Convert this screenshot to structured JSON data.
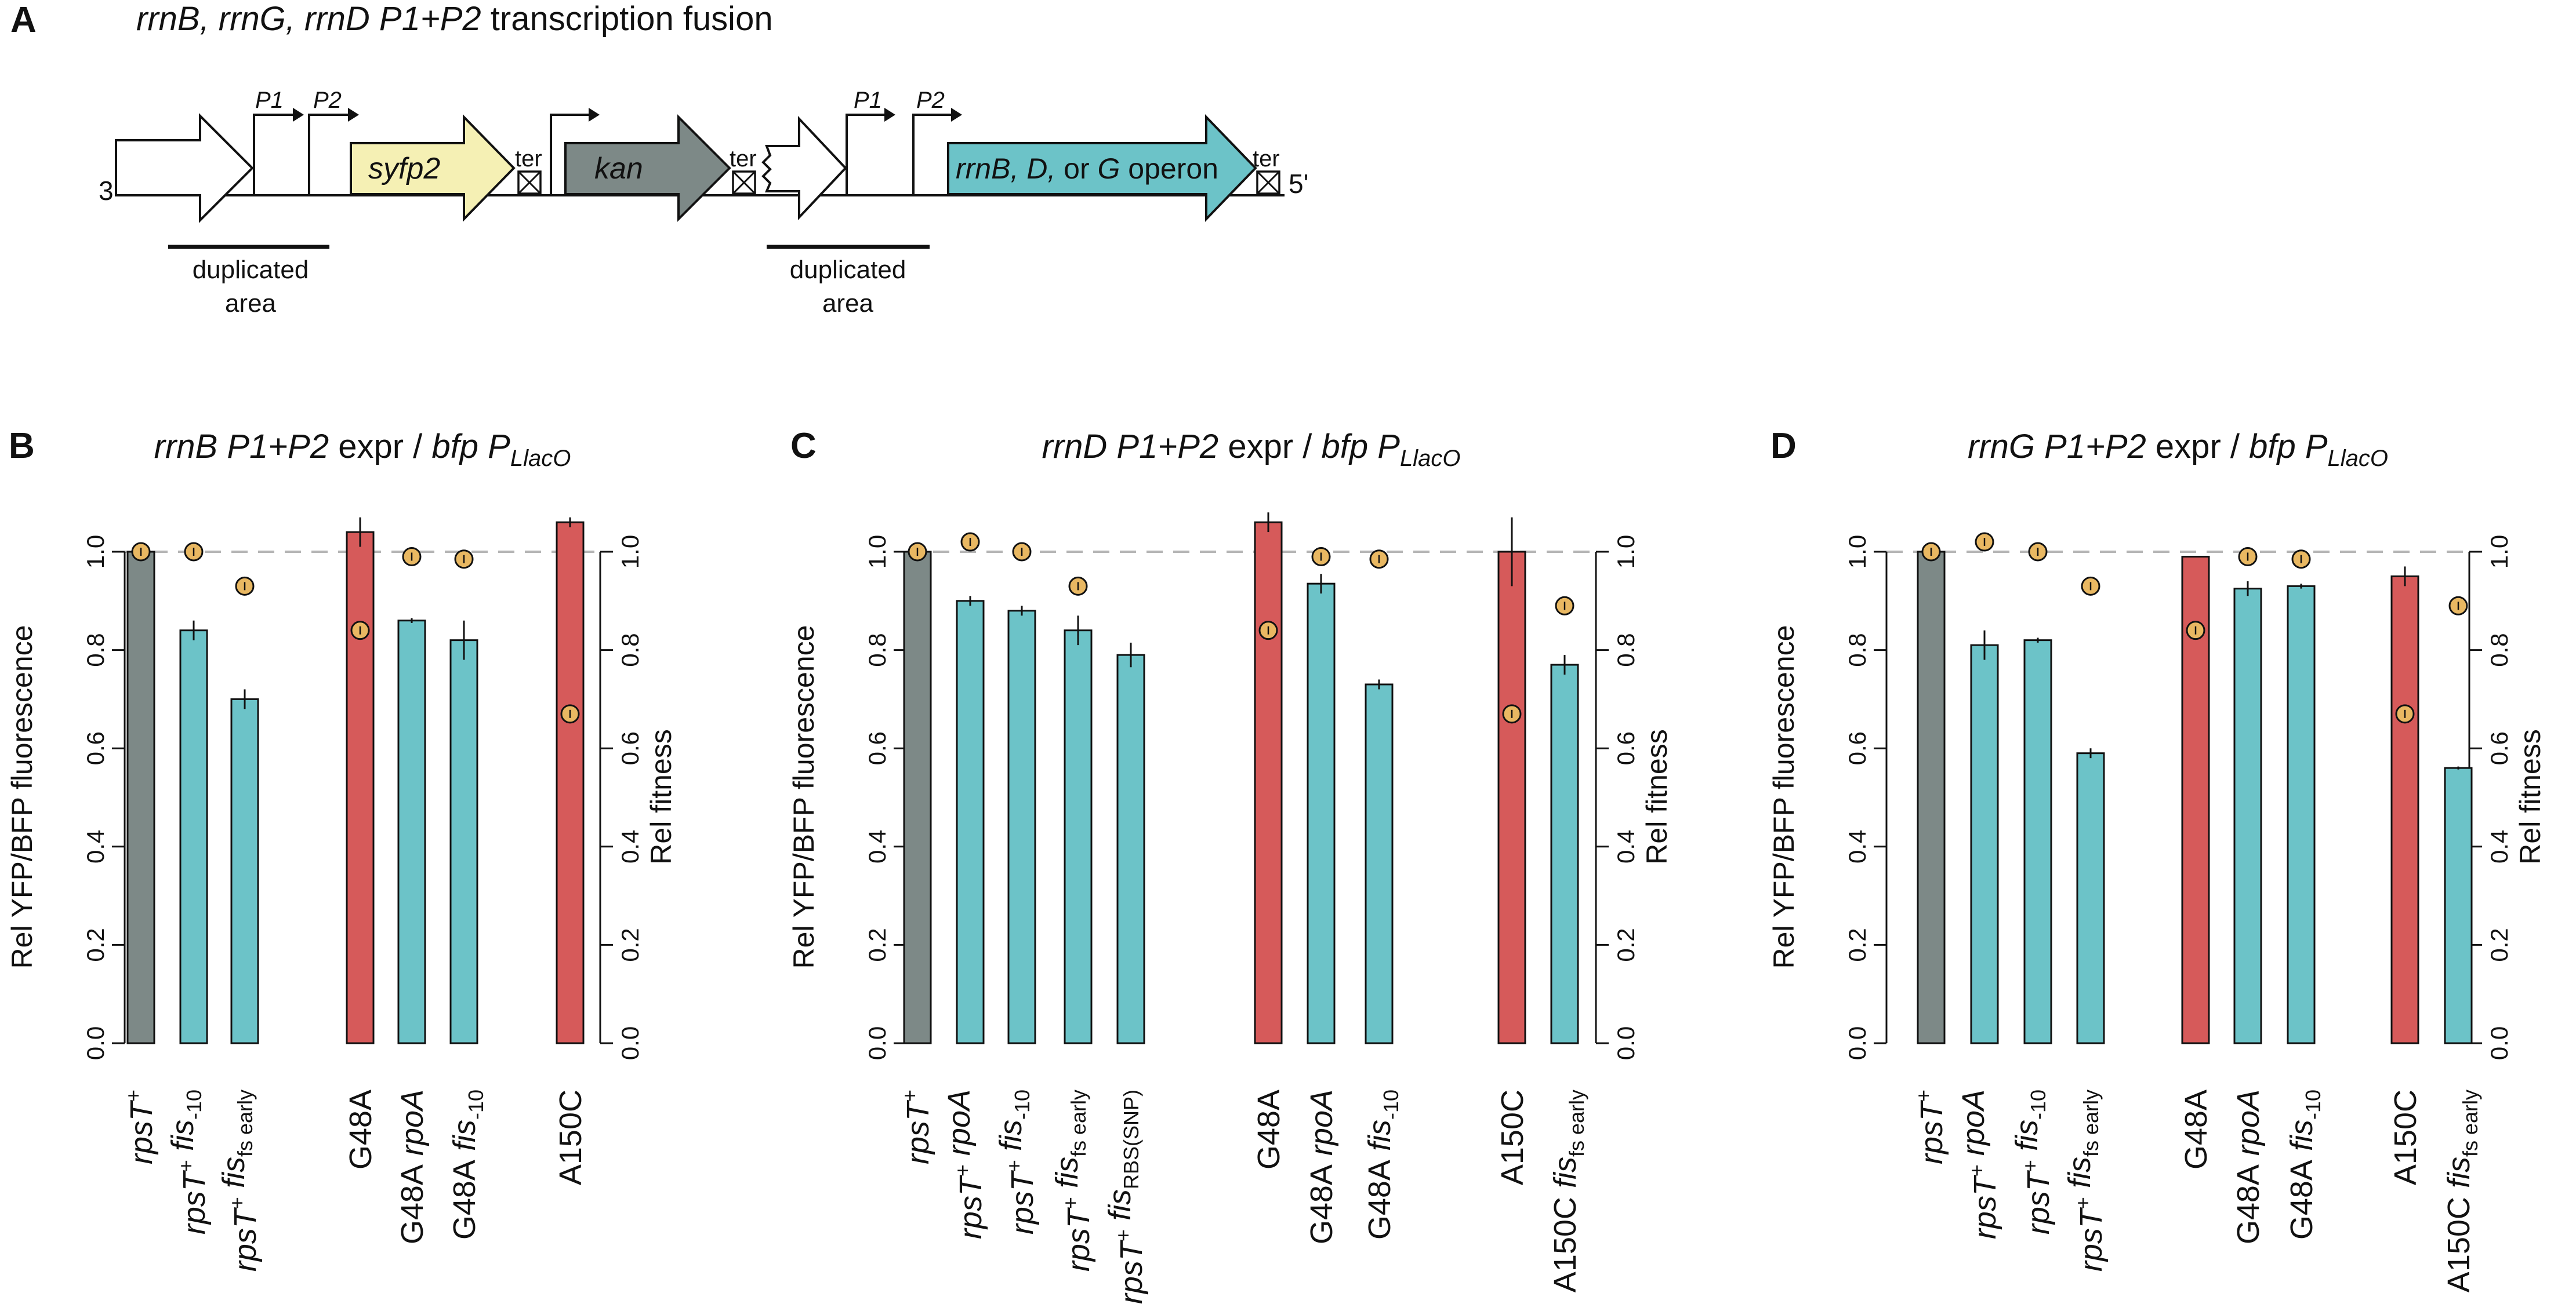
{
  "schematic": {
    "panel_label": "A",
    "title_italic": "rrnB, rrnG, rrnD  P1+P2",
    "title_rest": " transcription fusion",
    "end_left": "3'",
    "end_right": "5'",
    "p1": "P1",
    "p2": "P2",
    "syfp2": "syfp2",
    "kan": "kan",
    "ter": "ter",
    "operon_italic": "rrnB, D,",
    "operon_or": " or ",
    "operon_g": "G",
    "operon_word": " operon",
    "dup_line1": "duplicated",
    "dup_line2": "area",
    "colors": {
      "syfp2": "#f5f0b4",
      "kan": "#7d8987",
      "operon": "#6cc3c8"
    }
  },
  "chart_data": [
    {
      "type": "bar",
      "panel": "B",
      "title": {
        "gene": "rrnB P1+P2",
        "expr": " expr / ",
        "bfp": "bfp P",
        "sub": "LlacO"
      },
      "ylabel": "Rel YFP/BFP fluorescence",
      "ylabel_right": "Rel fitness",
      "ylim": [
        0,
        1.0
      ],
      "yticks": [
        "0.0",
        "0.2",
        "0.4",
        "0.6",
        "0.8",
        "1.0"
      ],
      "reference_line": 1.0,
      "categories": [
        "rpsT+",
        "rpsT+ fis-10",
        "rpsT+ fisfs early",
        "G48A",
        "G48A rpoA",
        "G48A fis-10",
        "A150C"
      ],
      "fluorescence": [
        1.0,
        0.84,
        0.7,
        1.04,
        0.86,
        0.82,
        1.06
      ],
      "errors": [
        0.0,
        0.02,
        0.02,
        0.03,
        0.005,
        0.04,
        0.01
      ],
      "fitness": [
        1.0,
        1.0,
        0.93,
        0.84,
        0.99,
        0.985,
        0.67
      ],
      "bar_colors": [
        "#7d8987",
        "#6cc3c8",
        "#6cc3c8",
        "#d65a5a",
        "#6cc3c8",
        "#6cc3c8",
        "#d65a5a"
      ],
      "labels": [
        [
          {
            "t": "rpsT",
            "i": true,
            "sup": "+"
          }
        ],
        [
          {
            "t": "rpsT",
            "i": true,
            "sup": "+"
          },
          {
            "t": "fis",
            "i": true,
            "sub": "-10"
          }
        ],
        [
          {
            "t": "rpsT",
            "i": true,
            "sup": "+"
          },
          {
            "t": "fis",
            "i": true,
            "sub": "fs early"
          }
        ],
        [
          {
            "t": "G48A"
          }
        ],
        [
          {
            "t": "G48A"
          },
          {
            "t": "rpoA",
            "i": true
          }
        ],
        [
          {
            "t": "G48A"
          },
          {
            "t": "fis",
            "i": true,
            "sub": "-10"
          }
        ],
        [
          {
            "t": "A150C"
          }
        ]
      ]
    },
    {
      "type": "bar",
      "panel": "C",
      "title": {
        "gene": "rrnD P1+P2",
        "expr": " expr / ",
        "bfp": "bfp P",
        "sub": "LlacO"
      },
      "ylabel": "Rel YFP/BFP fluorescence",
      "ylabel_right": "Rel fitness",
      "ylim": [
        0,
        1.0
      ],
      "yticks": [
        "0.0",
        "0.2",
        "0.4",
        "0.6",
        "0.8",
        "1.0"
      ],
      "reference_line": 1.0,
      "categories": [
        "rpsT+",
        "rpsT+ rpoA",
        "rpsT+ fis-10",
        "rpsT+ fisfs early",
        "rpsT+ fisRBS(SNP)",
        "G48A",
        "G48A rpoA",
        "G48A fis-10",
        "A150C",
        "A150C fisfs early"
      ],
      "fluorescence": [
        1.0,
        0.9,
        0.88,
        0.84,
        0.79,
        1.06,
        0.935,
        0.73,
        1.0,
        0.77
      ],
      "errors": [
        0.0,
        0.01,
        0.01,
        0.03,
        0.025,
        0.02,
        0.02,
        0.01,
        0.07,
        0.02
      ],
      "fitness": [
        1.0,
        1.02,
        1.0,
        0.93,
        null,
        0.84,
        0.99,
        0.985,
        0.67,
        0.89
      ],
      "bar_colors": [
        "#7d8987",
        "#6cc3c8",
        "#6cc3c8",
        "#6cc3c8",
        "#6cc3c8",
        "#d65a5a",
        "#6cc3c8",
        "#6cc3c8",
        "#d65a5a",
        "#6cc3c8"
      ],
      "labels": [
        [
          {
            "t": "rpsT",
            "i": true,
            "sup": "+"
          }
        ],
        [
          {
            "t": "rpsT",
            "i": true,
            "sup": "+"
          },
          {
            "t": "rpoA",
            "i": true
          }
        ],
        [
          {
            "t": "rpsT",
            "i": true,
            "sup": "+"
          },
          {
            "t": "fis",
            "i": true,
            "sub": "-10"
          }
        ],
        [
          {
            "t": "rpsT",
            "i": true,
            "sup": "+"
          },
          {
            "t": "fis",
            "i": true,
            "sub": "fs early"
          }
        ],
        [
          {
            "t": "rpsT",
            "i": true,
            "sup": "+"
          },
          {
            "t": "fis",
            "i": true,
            "sub": "RBS(SNP)"
          }
        ],
        [
          {
            "t": "G48A"
          }
        ],
        [
          {
            "t": "G48A"
          },
          {
            "t": "rpoA",
            "i": true
          }
        ],
        [
          {
            "t": "G48A"
          },
          {
            "t": "fis",
            "i": true,
            "sub": "-10"
          }
        ],
        [
          {
            "t": "A150C"
          }
        ],
        [
          {
            "t": "A150C"
          },
          {
            "t": "fis",
            "i": true,
            "sub": "fs early"
          }
        ]
      ]
    },
    {
      "type": "bar",
      "panel": "D",
      "title": {
        "gene": "rrnG P1+P2",
        "expr": " expr / ",
        "bfp": "bfp P",
        "sub": "LlacO"
      },
      "ylabel": "Rel YFP/BFP fluorescence",
      "ylabel_right": "Rel fitness",
      "ylim": [
        0,
        1.0
      ],
      "yticks": [
        "0.0",
        "0.2",
        "0.4",
        "0.6",
        "0.8",
        "1.0"
      ],
      "reference_line": 1.0,
      "categories": [
        "rpsT+",
        "rpsT+ rpoA",
        "rpsT+ fis-10",
        "rpsT+ fisfs early",
        "G48A",
        "G48A rpoA",
        "G48A fis-10",
        "A150C",
        "A150C fisfs early"
      ],
      "fluorescence": [
        1.0,
        0.81,
        0.82,
        0.59,
        0.99,
        0.925,
        0.93,
        0.95,
        0.56
      ],
      "errors": [
        0.01,
        0.03,
        0.005,
        0.01,
        0.0,
        0.015,
        0.005,
        0.02,
        0.003
      ],
      "fitness": [
        1.0,
        1.02,
        1.0,
        0.93,
        0.84,
        0.99,
        0.985,
        0.67,
        0.89
      ],
      "bar_colors": [
        "#7d8987",
        "#6cc3c8",
        "#6cc3c8",
        "#6cc3c8",
        "#d65a5a",
        "#6cc3c8",
        "#6cc3c8",
        "#d65a5a",
        "#6cc3c8"
      ],
      "labels": [
        [
          {
            "t": "rpsT",
            "i": true,
            "sup": "+"
          }
        ],
        [
          {
            "t": "rpsT",
            "i": true,
            "sup": "+"
          },
          {
            "t": "rpoA",
            "i": true
          }
        ],
        [
          {
            "t": "rpsT",
            "i": true,
            "sup": "+"
          },
          {
            "t": "fis",
            "i": true,
            "sub": "-10"
          }
        ],
        [
          {
            "t": "rpsT",
            "i": true,
            "sup": "+"
          },
          {
            "t": "fis",
            "i": true,
            "sub": "fs early"
          }
        ],
        [
          {
            "t": "G48A"
          }
        ],
        [
          {
            "t": "G48A"
          },
          {
            "t": "rpoA",
            "i": true
          }
        ],
        [
          {
            "t": "G48A"
          },
          {
            "t": "fis",
            "i": true,
            "sub": "-10"
          }
        ],
        [
          {
            "t": "A150C"
          }
        ],
        [
          {
            "t": "A150C"
          },
          {
            "t": "fis",
            "i": true,
            "sub": "fs early"
          }
        ]
      ]
    }
  ],
  "colors": {
    "fitness_dot": "#e9b862",
    "ref_line": "#b5b5b5"
  }
}
